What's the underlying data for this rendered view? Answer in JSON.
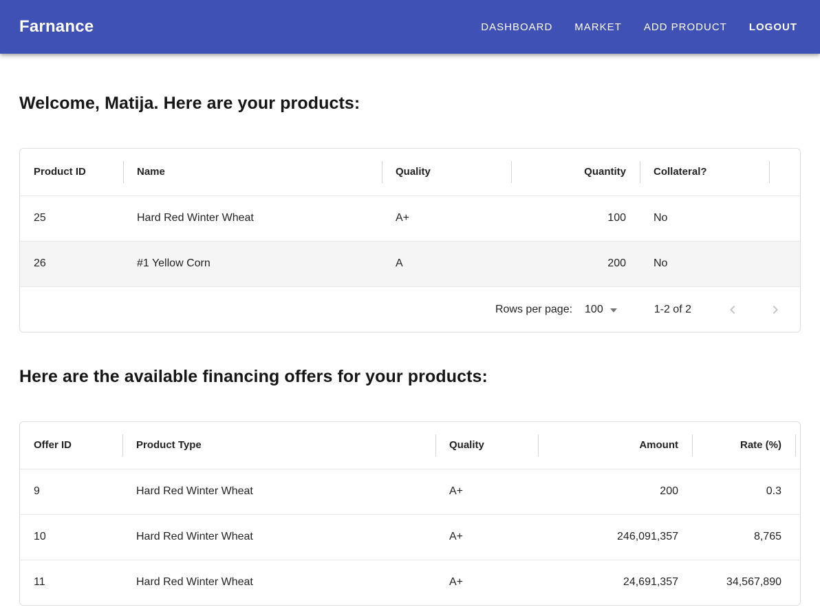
{
  "navbar": {
    "brand": "Farnance",
    "links": [
      {
        "label": "DASHBOARD"
      },
      {
        "label": "MARKET"
      },
      {
        "label": "ADD PRODUCT"
      },
      {
        "label": "LOGOUT"
      }
    ]
  },
  "headings": {
    "products": "Welcome, Matija. Here are your products:",
    "offers": "Here are the available financing offers for your products:"
  },
  "products_table": {
    "columns": [
      {
        "label": "Product ID",
        "key": "product_id",
        "align": "left"
      },
      {
        "label": "Name",
        "key": "name",
        "align": "left"
      },
      {
        "label": "Quality",
        "key": "quality",
        "align": "left"
      },
      {
        "label": "Quantity",
        "key": "quantity",
        "align": "right"
      },
      {
        "label": "Collateral?",
        "key": "collateral",
        "align": "left"
      }
    ],
    "rows": [
      {
        "product_id": "25",
        "name": "Hard Red Winter Wheat",
        "quality": "A+",
        "quantity": "100",
        "collateral": "No"
      },
      {
        "product_id": "26",
        "name": "#1 Yellow Corn",
        "quality": "A",
        "quantity": "200",
        "collateral": "No"
      }
    ],
    "highlighted_row_index": 1,
    "footer": {
      "rows_per_page_label": "Rows per page:",
      "rows_per_page_value": "100",
      "range_text": "1-2 of 2",
      "prev_icon": "chevron-left-icon",
      "next_icon": "chevron-right-icon"
    }
  },
  "offers_table": {
    "columns": [
      {
        "label": "Offer ID",
        "key": "offer_id",
        "align": "left"
      },
      {
        "label": "Product Type",
        "key": "product_type",
        "align": "left"
      },
      {
        "label": "Quality",
        "key": "quality",
        "align": "left"
      },
      {
        "label": "Amount",
        "key": "amount",
        "align": "right"
      },
      {
        "label": "Rate (%)",
        "key": "rate",
        "align": "right"
      }
    ],
    "rows": [
      {
        "offer_id": "9",
        "product_type": "Hard Red Winter Wheat",
        "quality": "A+",
        "amount": "200",
        "rate": "0.3"
      },
      {
        "offer_id": "10",
        "product_type": "Hard Red Winter Wheat",
        "quality": "A+",
        "amount": "246,091,357",
        "rate": "8,765"
      },
      {
        "offer_id": "11",
        "product_type": "Hard Red Winter Wheat",
        "quality": "A+",
        "amount": "24,691,357",
        "rate": "34,567,890"
      }
    ]
  },
  "colors": {
    "navbar_bg": "#3f51b5",
    "navbar_text": "#ffffff",
    "row_highlight": "#f5f5f5",
    "table_border": "#dedede",
    "divider": "#d4d4d4",
    "chevron_disabled": "#c5c5c5"
  }
}
